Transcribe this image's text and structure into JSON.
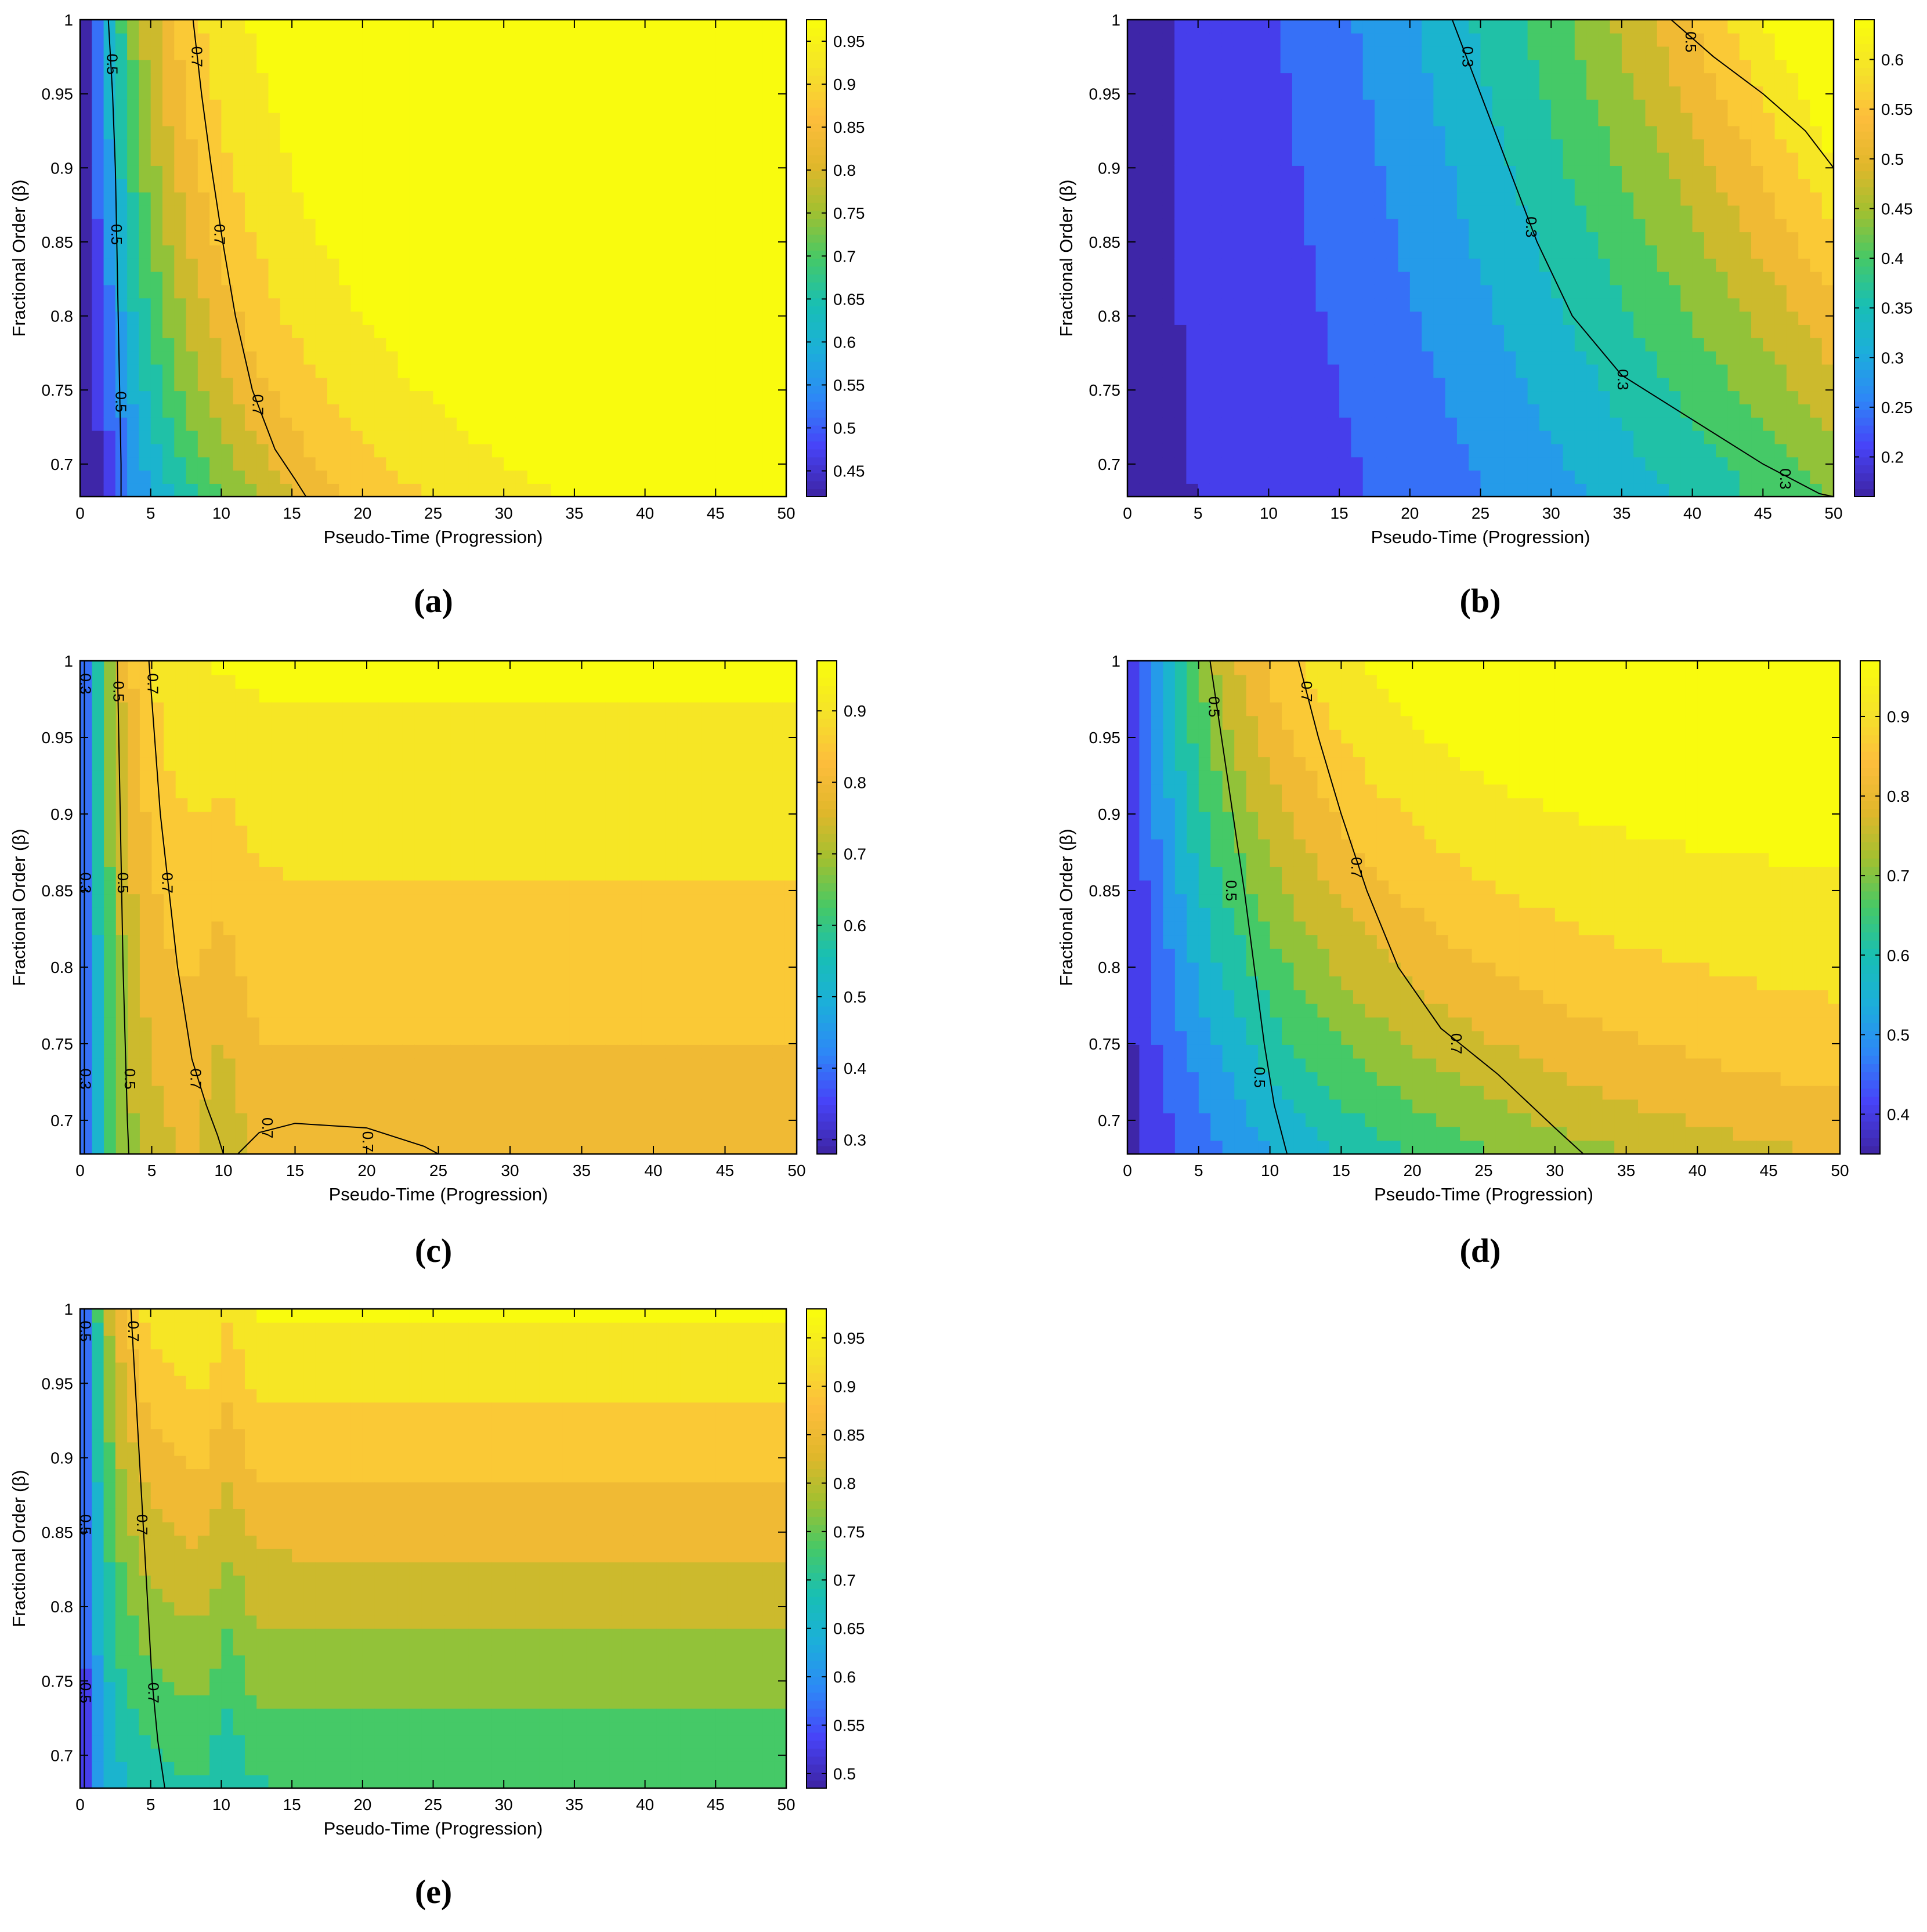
{
  "panels": [
    {
      "caption": "(a)",
      "chart_data": {
        "type": "heatmap",
        "title": "",
        "xlabel": "Pseudo-Time (Progression)",
        "ylabel": "Fractional Order (β)",
        "xlim": [
          0,
          50
        ],
        "ylim": [
          0.678,
          1
        ],
        "xticks": [
          "0",
          "5",
          "10",
          "15",
          "20",
          "25",
          "30",
          "35",
          "40",
          "45",
          "50"
        ],
        "yticks": [
          "0.7",
          "0.75",
          "0.8",
          "0.85",
          "0.9",
          "0.95",
          "1"
        ],
        "colorbar": {
          "range": [
            0.42,
            0.975
          ],
          "ticks": [
            "0.45",
            "0.5",
            "0.55",
            "0.6",
            "0.65",
            "0.7",
            "0.75",
            "0.8",
            "0.85",
            "0.9",
            "0.95"
          ]
        },
        "contour_lines": [
          {
            "level": "0.5",
            "points": [
              [
                2.0,
                1.0
              ],
              [
                2.3,
                0.95
              ],
              [
                2.5,
                0.9
              ],
              [
                2.6,
                0.85
              ],
              [
                2.7,
                0.8
              ],
              [
                2.8,
                0.75
              ],
              [
                2.9,
                0.7
              ],
              [
                2.9,
                0.678
              ]
            ],
            "label_positions": [
              [
                2.2,
                0.97
              ],
              [
                2.5,
                0.855
              ],
              [
                2.8,
                0.742
              ]
            ]
          },
          {
            "level": "0.7",
            "points": [
              [
                8.0,
                1.0
              ],
              [
                8.6,
                0.95
              ],
              [
                9.3,
                0.9
              ],
              [
                10.1,
                0.85
              ],
              [
                11.0,
                0.8
              ],
              [
                12.2,
                0.75
              ],
              [
                13.8,
                0.71
              ],
              [
                15.2,
                0.69
              ],
              [
                16.0,
                0.678
              ]
            ],
            "label_positions": [
              [
                8.2,
                0.975
              ],
              [
                9.8,
                0.855
              ],
              [
                12.5,
                0.74
              ]
            ]
          }
        ]
      }
    },
    {
      "caption": "(b)",
      "chart_data": {
        "type": "heatmap",
        "title": "",
        "xlabel": "Pseudo-Time (Progression)",
        "ylabel": "Fractional Order (β)",
        "xlim": [
          0,
          50
        ],
        "ylim": [
          0.678,
          1
        ],
        "xticks": [
          "0",
          "5",
          "10",
          "15",
          "20",
          "25",
          "30",
          "35",
          "40",
          "45",
          "50"
        ],
        "yticks": [
          "0.7",
          "0.75",
          "0.8",
          "0.85",
          "0.9",
          "0.95",
          "1"
        ],
        "colorbar": {
          "range": [
            0.16,
            0.64
          ],
          "ticks": [
            "0.2",
            "0.25",
            "0.3",
            "0.35",
            "0.4",
            "0.45",
            "0.5",
            "0.55",
            "0.6"
          ]
        },
        "contour_lines": [
          {
            "level": "0.3",
            "points": [
              [
                23.0,
                1.0
              ],
              [
                25.0,
                0.95
              ],
              [
                27.0,
                0.9
              ],
              [
                29.0,
                0.85
              ],
              [
                31.5,
                0.8
              ],
              [
                35.0,
                0.76
              ],
              [
                40.0,
                0.73
              ],
              [
                45.0,
                0.7
              ],
              [
                49.0,
                0.68
              ],
              [
                50.0,
                0.678
              ]
            ],
            "label_positions": [
              [
                24.0,
                0.975
              ],
              [
                28.5,
                0.86
              ],
              [
                35.0,
                0.757
              ],
              [
                46.5,
                0.69
              ]
            ]
          },
          {
            "level": "0.5",
            "points": [
              [
                38.5,
                1.0
              ],
              [
                41.5,
                0.975
              ],
              [
                45.0,
                0.95
              ],
              [
                48.0,
                0.925
              ],
              [
                50.0,
                0.9
              ]
            ],
            "label_positions": [
              [
                39.8,
                0.985
              ]
            ]
          }
        ]
      }
    },
    {
      "caption": "(c)",
      "chart_data": {
        "type": "heatmap",
        "title": "",
        "xlabel": "Pseudo-Time (Progression)",
        "ylabel": "Fractional Order (β)",
        "xlim": [
          0,
          50
        ],
        "ylim": [
          0.678,
          1
        ],
        "xticks": [
          "0",
          "5",
          "10",
          "15",
          "20",
          "25",
          "30",
          "35",
          "40",
          "45",
          "50"
        ],
        "yticks": [
          "0.7",
          "0.75",
          "0.8",
          "0.85",
          "0.9",
          "0.95",
          "1"
        ],
        "colorbar": {
          "range": [
            0.28,
            0.97
          ],
          "ticks": [
            "0.3",
            "0.4",
            "0.5",
            "0.6",
            "0.7",
            "0.8",
            "0.9"
          ]
        },
        "contour_lines": [
          {
            "level": "0.3",
            "points": [
              [
                0.3,
                1.0
              ],
              [
                0.3,
                0.678
              ]
            ],
            "label_positions": [
              [
                0.3,
                0.985
              ],
              [
                0.3,
                0.855
              ],
              [
                0.3,
                0.727
              ]
            ]
          },
          {
            "level": "0.5",
            "points": [
              [
                2.6,
                1.0
              ],
              [
                2.8,
                0.9
              ],
              [
                3.0,
                0.8
              ],
              [
                3.3,
                0.7
              ],
              [
                3.4,
                0.678
              ]
            ],
            "label_positions": [
              [
                2.6,
                0.98
              ],
              [
                2.9,
                0.855
              ],
              [
                3.4,
                0.727
              ]
            ]
          },
          {
            "level": "0.7",
            "points": [
              [
                4.8,
                1.0
              ],
              [
                5.6,
                0.9
              ],
              [
                6.8,
                0.8
              ],
              [
                7.8,
                0.74
              ],
              [
                8.8,
                0.71
              ],
              [
                9.6,
                0.69
              ],
              [
                10.0,
                0.678
              ]
            ],
            "label_positions": [
              [
                5.0,
                0.985
              ],
              [
                6.0,
                0.855
              ],
              [
                8.0,
                0.727
              ]
            ]
          },
          {
            "level": "0.7",
            "points": [
              [
                11.0,
                0.678
              ],
              [
                12.5,
                0.692
              ],
              [
                15.0,
                0.698
              ],
              [
                20.0,
                0.695
              ],
              [
                24.0,
                0.683
              ],
              [
                25.0,
                0.678
              ]
            ],
            "label_positions": [
              [
                13.0,
                0.695
              ],
              [
                20.0,
                0.686
              ]
            ]
          }
        ]
      }
    },
    {
      "caption": "(d)",
      "chart_data": {
        "type": "heatmap",
        "title": "",
        "xlabel": "Pseudo-Time (Progression)",
        "ylabel": "Fractional Order (β)",
        "xlim": [
          0,
          50
        ],
        "ylim": [
          0.678,
          1
        ],
        "xticks": [
          "0",
          "5",
          "10",
          "15",
          "20",
          "25",
          "30",
          "35",
          "40",
          "45",
          "50"
        ],
        "yticks": [
          "0.7",
          "0.75",
          "0.8",
          "0.85",
          "0.9",
          "0.95",
          "1"
        ],
        "colorbar": {
          "range": [
            0.35,
            0.97
          ],
          "ticks": [
            "0.4",
            "0.5",
            "0.6",
            "0.7",
            "0.8",
            "0.9"
          ]
        },
        "contour_lines": [
          {
            "level": "0.5",
            "points": [
              [
                5.8,
                1.0
              ],
              [
                6.6,
                0.95
              ],
              [
                7.4,
                0.9
              ],
              [
                8.2,
                0.85
              ],
              [
                8.9,
                0.8
              ],
              [
                9.6,
                0.75
              ],
              [
                10.3,
                0.71
              ],
              [
                11.2,
                0.678
              ]
            ],
            "label_positions": [
              [
                6.0,
                0.97
              ],
              [
                7.2,
                0.85
              ],
              [
                9.2,
                0.728
              ]
            ]
          },
          {
            "level": "0.7",
            "points": [
              [
                12.0,
                1.0
              ],
              [
                13.4,
                0.95
              ],
              [
                15.0,
                0.9
              ],
              [
                16.8,
                0.85
              ],
              [
                19.0,
                0.8
              ],
              [
                22.0,
                0.76
              ],
              [
                26.0,
                0.73
              ],
              [
                30.0,
                0.695
              ],
              [
                32.0,
                0.678
              ]
            ],
            "label_positions": [
              [
                12.5,
                0.98
              ],
              [
                16.0,
                0.865
              ],
              [
                23.0,
                0.75
              ]
            ]
          }
        ]
      }
    },
    {
      "caption": "(e)",
      "chart_data": {
        "type": "heatmap",
        "title": "",
        "xlabel": "Pseudo-Time (Progression)",
        "ylabel": "Fractional Order (β)",
        "xlim": [
          0,
          50
        ],
        "ylim": [
          0.678,
          1
        ],
        "xticks": [
          "0",
          "5",
          "10",
          "15",
          "20",
          "25",
          "30",
          "35",
          "40",
          "45",
          "50"
        ],
        "yticks": [
          "0.7",
          "0.75",
          "0.8",
          "0.85",
          "0.9",
          "0.95",
          "1"
        ],
        "colorbar": {
          "range": [
            0.485,
            0.98
          ],
          "ticks": [
            "0.5",
            "0.55",
            "0.6",
            "0.65",
            "0.7",
            "0.75",
            "0.8",
            "0.85",
            "0.9",
            "0.95"
          ]
        },
        "contour_lines": [
          {
            "level": "0.5",
            "points": [
              [
                0.3,
                1.0
              ],
              [
                0.3,
                0.678
              ]
            ],
            "label_positions": [
              [
                0.3,
                0.985
              ],
              [
                0.3,
                0.855
              ],
              [
                0.3,
                0.742
              ]
            ]
          },
          {
            "level": "0.7",
            "points": [
              [
                3.6,
                1.0
              ],
              [
                3.9,
                0.95
              ],
              [
                4.2,
                0.9
              ],
              [
                4.5,
                0.85
              ],
              [
                4.8,
                0.8
              ],
              [
                5.1,
                0.75
              ],
              [
                5.5,
                0.71
              ],
              [
                6.0,
                0.678
              ]
            ],
            "label_positions": [
              [
                3.7,
                0.985
              ],
              [
                4.3,
                0.855
              ],
              [
                5.1,
                0.742
              ]
            ]
          }
        ]
      }
    }
  ],
  "colormap": [
    "#3e26a8",
    "#4743f8",
    "#2e87f7",
    "#1caedb",
    "#18bfb4",
    "#45c967",
    "#a1c030",
    "#e2b72b",
    "#fdbd3c",
    "#f5e22a",
    "#f9fb0e"
  ]
}
